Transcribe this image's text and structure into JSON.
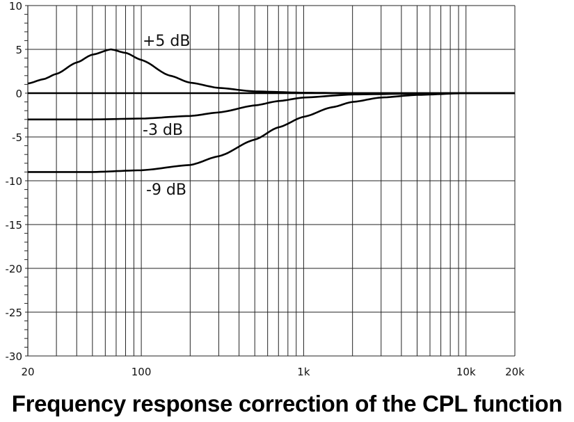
{
  "chart_data": {
    "type": "line",
    "title": "Frequency response correction of the CPL function",
    "xlabel": "",
    "ylabel": "",
    "x_scale": "log",
    "xlim": [
      20,
      20000
    ],
    "ylim": [
      -30,
      10
    ],
    "grid": true,
    "x_ticks": [
      {
        "value": 20,
        "label": "20"
      },
      {
        "value": 100,
        "label": "100"
      },
      {
        "value": 1000,
        "label": "1k"
      },
      {
        "value": 10000,
        "label": "10k"
      },
      {
        "value": 20000,
        "label": "20k"
      }
    ],
    "y_ticks": [
      {
        "value": 10,
        "label": "10"
      },
      {
        "value": 5,
        "label": "5"
      },
      {
        "value": 0,
        "label": "0"
      },
      {
        "value": -5,
        "label": "-5"
      },
      {
        "value": -10,
        "label": "-10"
      },
      {
        "value": -15,
        "label": "-15"
      },
      {
        "value": -20,
        "label": "-20"
      },
      {
        "value": -25,
        "label": "-25"
      },
      {
        "value": -30,
        "label": "-30"
      }
    ],
    "series": [
      {
        "name": "+5 dB",
        "x": [
          20,
          25,
          30,
          40,
          50,
          65,
          80,
          100,
          150,
          200,
          300,
          500,
          1000,
          2000,
          20000
        ],
        "y": [
          1.1,
          1.6,
          2.2,
          3.5,
          4.4,
          5.0,
          4.6,
          3.8,
          2.0,
          1.2,
          0.6,
          0.2,
          0.05,
          0,
          0
        ]
      },
      {
        "name": "",
        "x": [
          20,
          20000
        ],
        "y": [
          0,
          0
        ]
      },
      {
        "name": "-3 dB",
        "x": [
          20,
          50,
          100,
          200,
          300,
          500,
          700,
          1000,
          2000,
          5000,
          10000,
          20000
        ],
        "y": [
          -3,
          -3,
          -2.9,
          -2.6,
          -2.2,
          -1.4,
          -0.9,
          -0.5,
          -0.15,
          -0.05,
          0,
          0
        ]
      },
      {
        "name": "-9 dB",
        "x": [
          20,
          50,
          100,
          200,
          300,
          500,
          700,
          1000,
          1500,
          2000,
          3000,
          5000,
          10000,
          20000
        ],
        "y": [
          -9,
          -9,
          -8.8,
          -8.2,
          -7.2,
          -5.3,
          -3.9,
          -2.7,
          -1.6,
          -1.0,
          -0.5,
          -0.2,
          0,
          0
        ]
      }
    ]
  }
}
